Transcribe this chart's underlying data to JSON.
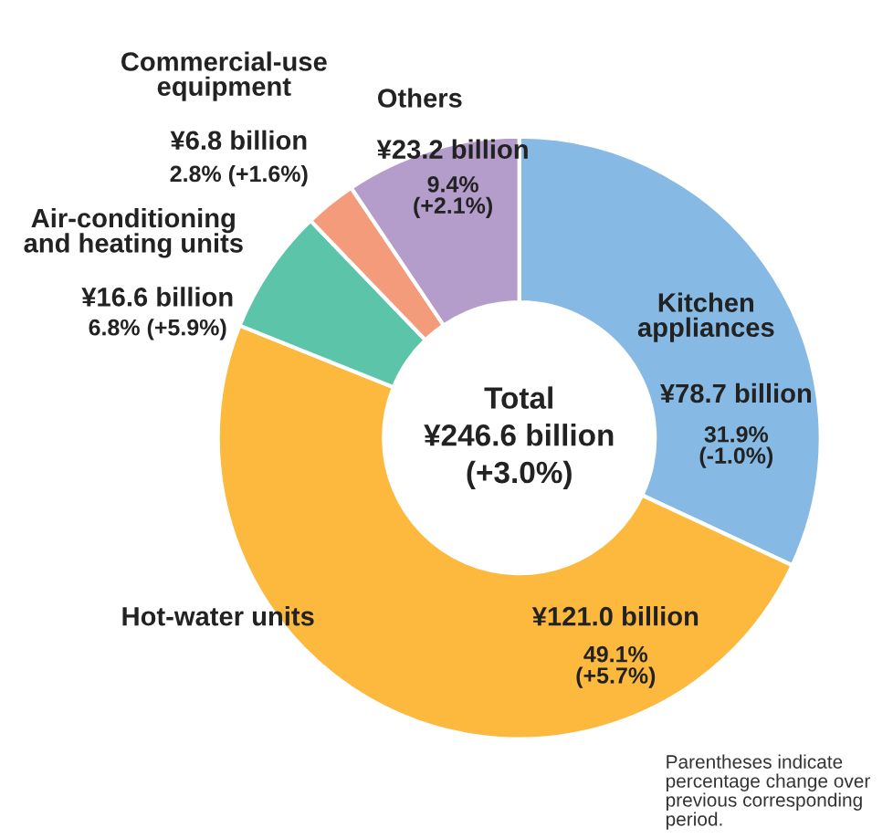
{
  "chart_data": {
    "type": "donut",
    "categories": [
      "Kitchen\nappliances",
      "Hot-water units",
      "Air-conditioning\nand heating units",
      "Commercial-use\nequipment",
      "Others"
    ],
    "values": [
      78.7,
      121.0,
      16.6,
      6.8,
      23.2
    ],
    "value_labels": [
      "¥78.7 billion",
      "¥121.0 billion",
      "¥16.6 billion",
      "¥6.8 billion",
      "¥23.2 billion"
    ],
    "colors": [
      "#86b9e3",
      "#fdb93d",
      "#5cc4a8",
      "#f49b7c",
      "#b49ccb"
    ],
    "annotations": [
      "Total\n¥246.6 billion\n(+3.0%)",
      "Parentheses indicate\npercentage change over\nprevious corresponding\nperiod.",
      "31.9%\n(-1.0%)",
      "49.1%\n(+5.7%)",
      "6.8% (+5.9%)",
      "2.8% (+1.6%)",
      "9.4%\n(+2.1%)"
    ],
    "legend": false
  }
}
